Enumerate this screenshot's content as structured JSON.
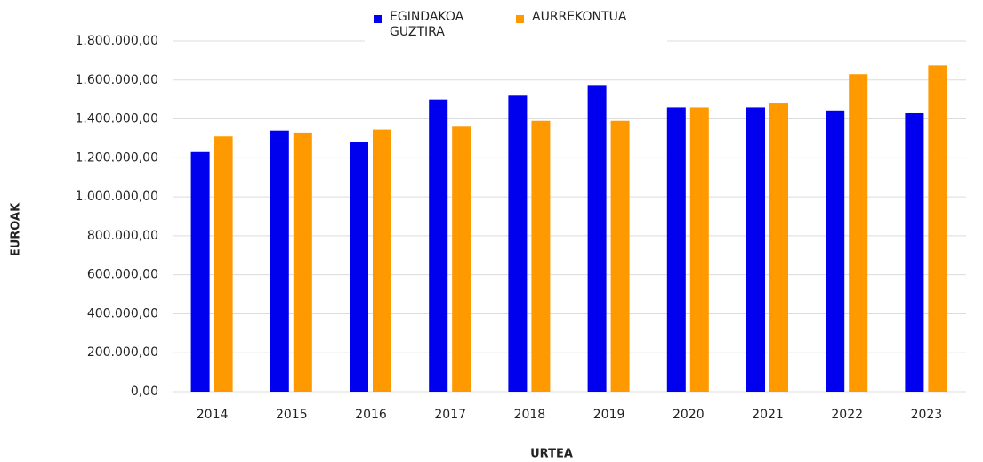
{
  "chart_data": {
    "type": "bar",
    "x_label": "URTEA",
    "y_label": "EUROAK",
    "categories": [
      "2014",
      "2015",
      "2016",
      "2017",
      "2018",
      "2019",
      "2020",
      "2021",
      "2022",
      "2023"
    ],
    "series": [
      {
        "name": "EGINDAKOA GUZTIRA",
        "color": "#0000ee",
        "values": [
          1230000,
          1340000,
          1280000,
          1500000,
          1520000,
          1570000,
          1460000,
          1460000,
          1440000,
          1430000
        ]
      },
      {
        "name": "AURREKONTUA",
        "color": "#ff9900",
        "values": [
          1310000,
          1330000,
          1345000,
          1360000,
          1390000,
          1390000,
          1460000,
          1480000,
          1630000,
          1675000
        ]
      }
    ],
    "ylim": [
      0,
      1800000
    ],
    "yticks": [
      {
        "value": 0,
        "label": "0,00"
      },
      {
        "value": 200000,
        "label": "200.000,00"
      },
      {
        "value": 400000,
        "label": "400.000,00"
      },
      {
        "value": 600000,
        "label": "600.000,00"
      },
      {
        "value": 800000,
        "label": "800.000,00"
      },
      {
        "value": 1000000,
        "label": "1.000.000,00"
      },
      {
        "value": 1200000,
        "label": "1.200.000,00"
      },
      {
        "value": 1400000,
        "label": "1.400.000,00"
      },
      {
        "value": 1600000,
        "label": "1.600.000,00"
      },
      {
        "value": 1800000,
        "label": "1.800.000,00"
      }
    ],
    "grid": true,
    "legend": "top"
  }
}
